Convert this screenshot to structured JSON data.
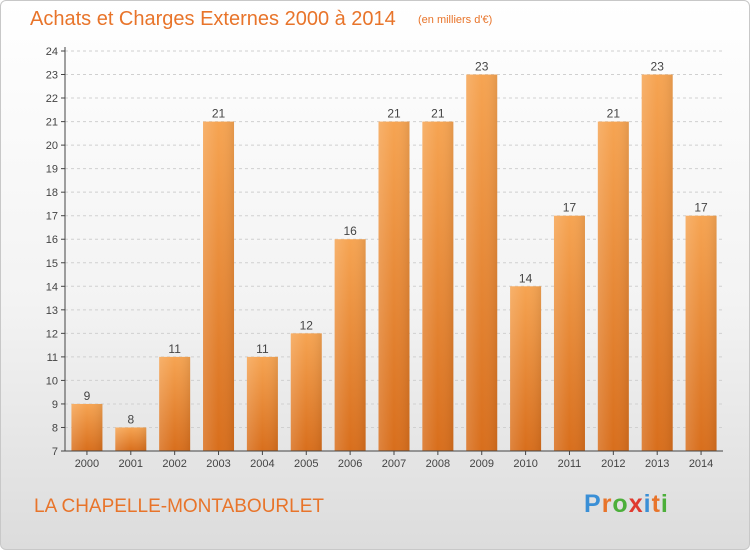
{
  "header": {
    "title": "Achats et Charges Externes 2000 à 2014",
    "subtitle": "(en milliers d'€)"
  },
  "footer": {
    "commune": "LA CHAPELLE-MONTABOURLET",
    "brand": "Proxiti",
    "brand_colors": [
      "#3a8fd6",
      "#e8742a",
      "#4caf3a",
      "#e03a2f",
      "#3a8fd6",
      "#e8742a",
      "#4caf3a"
    ]
  },
  "colors": {
    "accent": "#e8742a",
    "bar_top": "#f6a452",
    "bar_bottom": "#d86e1c",
    "axis": "#444444",
    "grid": "#d0d0d0",
    "label": "#444444"
  },
  "chart_data": {
    "type": "bar",
    "categories": [
      "2000",
      "2001",
      "2002",
      "2003",
      "2004",
      "2005",
      "2006",
      "2007",
      "2008",
      "2009",
      "2010",
      "2011",
      "2012",
      "2013",
      "2014"
    ],
    "values": [
      9,
      8,
      11,
      21,
      11,
      12,
      16,
      21,
      21,
      23,
      14,
      17,
      21,
      23,
      17
    ],
    "ylim": [
      7,
      24
    ],
    "yticks": [
      7,
      8,
      9,
      10,
      11,
      12,
      13,
      14,
      15,
      16,
      17,
      18,
      19,
      20,
      21,
      22,
      23,
      24
    ],
    "data_labels": true,
    "grid": "horizontal dashed",
    "title": "Achats et Charges Externes 2000 à 2014",
    "xlabel": "",
    "ylabel": ""
  }
}
